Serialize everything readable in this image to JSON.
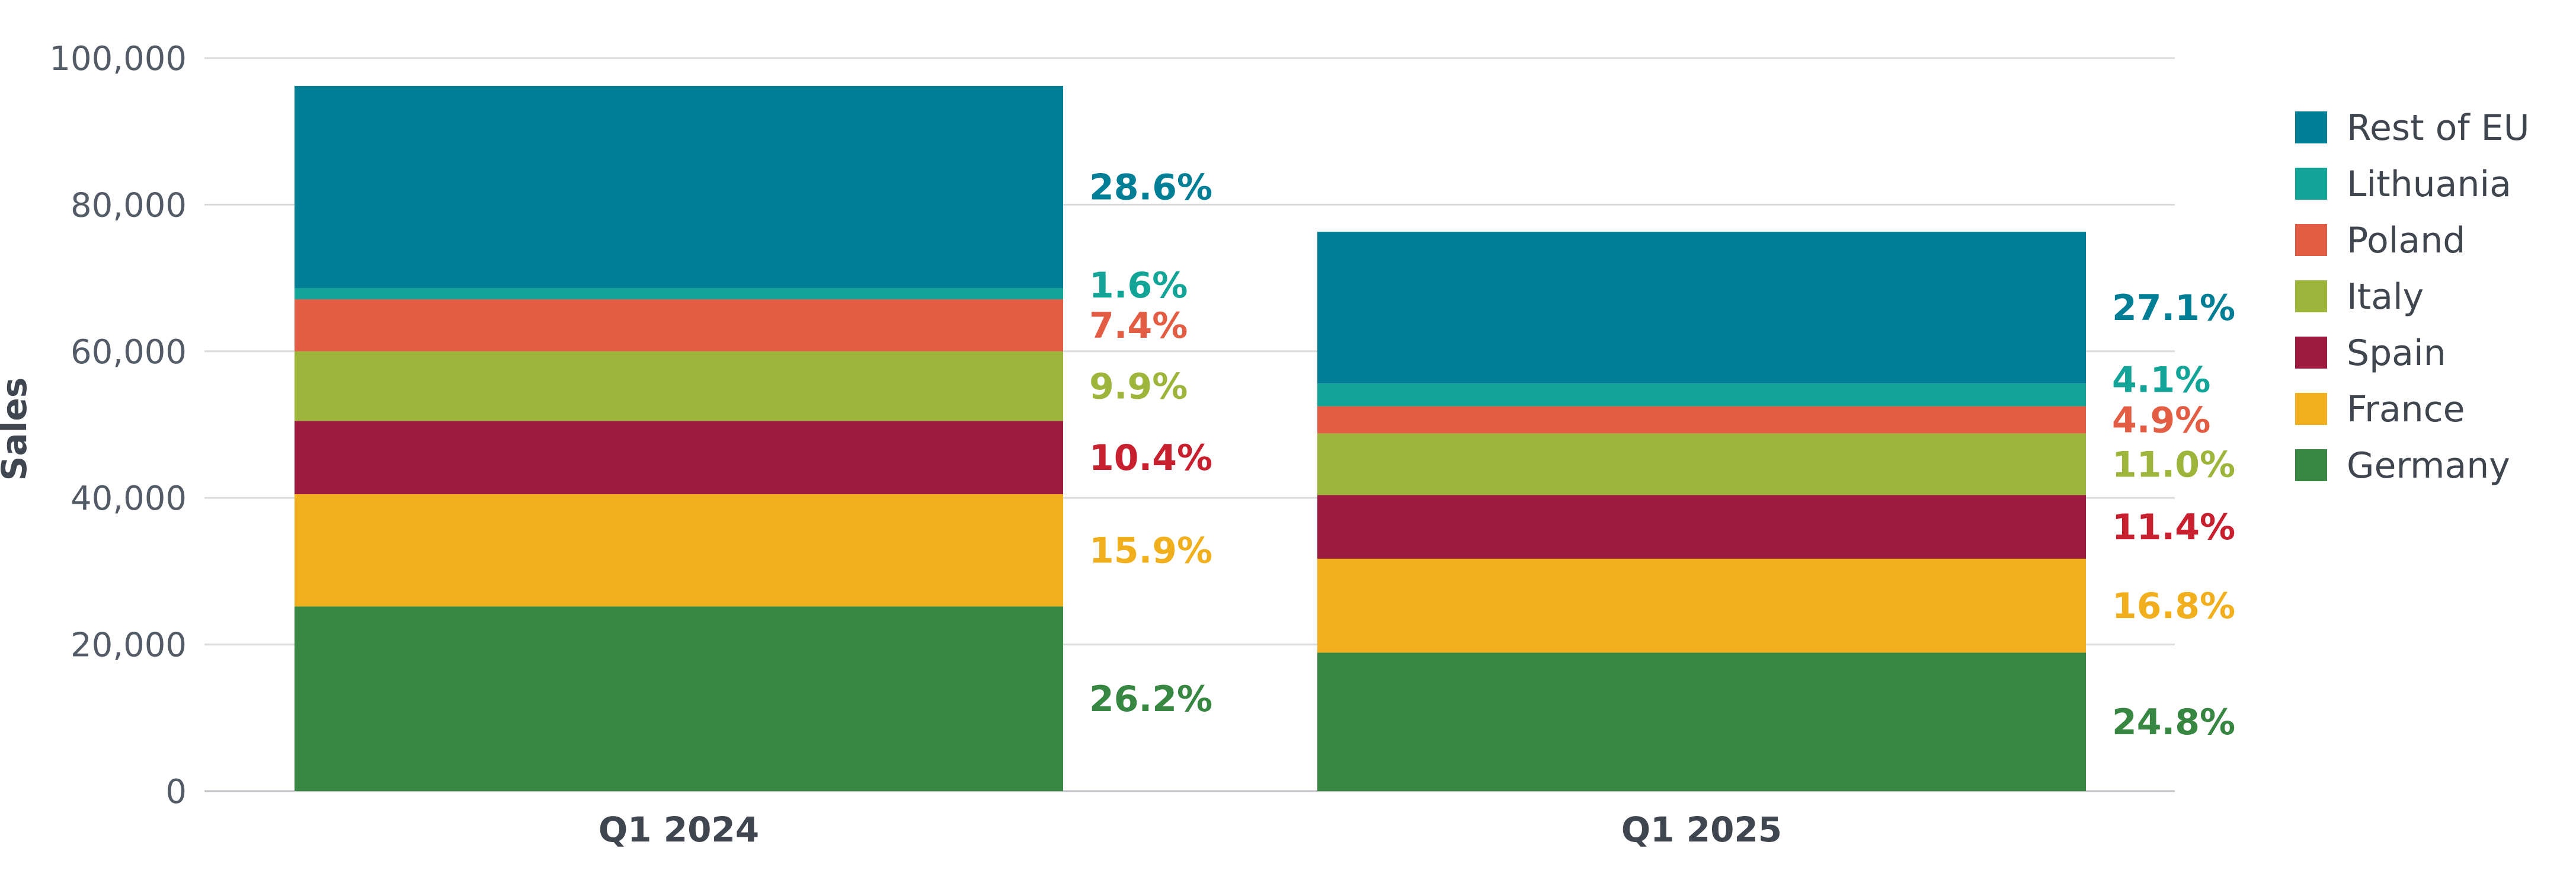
{
  "chart_data": {
    "type": "bar",
    "stacked": true,
    "categories": [
      "Q1 2024",
      "Q1 2025"
    ],
    "ylabel": "Sales",
    "ylim": [
      0,
      100000
    ],
    "yticks": [
      0,
      20000,
      40000,
      60000,
      80000,
      100000
    ],
    "ytick_labels": [
      "0",
      "20,000",
      "40,000",
      "60,000",
      "80,000",
      "100,000"
    ],
    "grid": true,
    "legend_position": "right",
    "series": [
      {
        "name": "Germany",
        "color": "#378641",
        "values": [
          25200,
          18900
        ],
        "labels": [
          "26.2%",
          "24.8%"
        ]
      },
      {
        "name": "France",
        "color": "#f2af1d",
        "values": [
          15300,
          12800
        ],
        "labels": [
          "15.9%",
          "16.8%"
        ]
      },
      {
        "name": "Spain",
        "color": "#9c1b3f",
        "values": [
          10000,
          8700
        ],
        "labels": [
          "10.4%",
          "11.4%"
        ]
      },
      {
        "name": "Italy",
        "color": "#9cb53a",
        "values": [
          9500,
          8400
        ],
        "labels": [
          "9.9%",
          "11.0%"
        ]
      },
      {
        "name": "Poland",
        "color": "#e35d44",
        "values": [
          7100,
          3700
        ],
        "labels": [
          "7.4%",
          "4.9%"
        ]
      },
      {
        "name": "Lithuania",
        "color": "#12a497",
        "values": [
          1500,
          3100
        ],
        "labels": [
          "1.6%",
          "4.1%"
        ]
      },
      {
        "name": "Rest of EU",
        "color": "#007e95",
        "values": [
          27600,
          20700
        ],
        "labels": [
          "28.6%",
          "27.1%"
        ]
      }
    ],
    "label_colors": {
      "Germany": "#378641",
      "France": "#f2af1d",
      "Spain": "#c8202f",
      "Italy": "#9cb53a",
      "Poland": "#e35d44",
      "Lithuania": "#12a497",
      "Rest of EU": "#007e95"
    }
  }
}
